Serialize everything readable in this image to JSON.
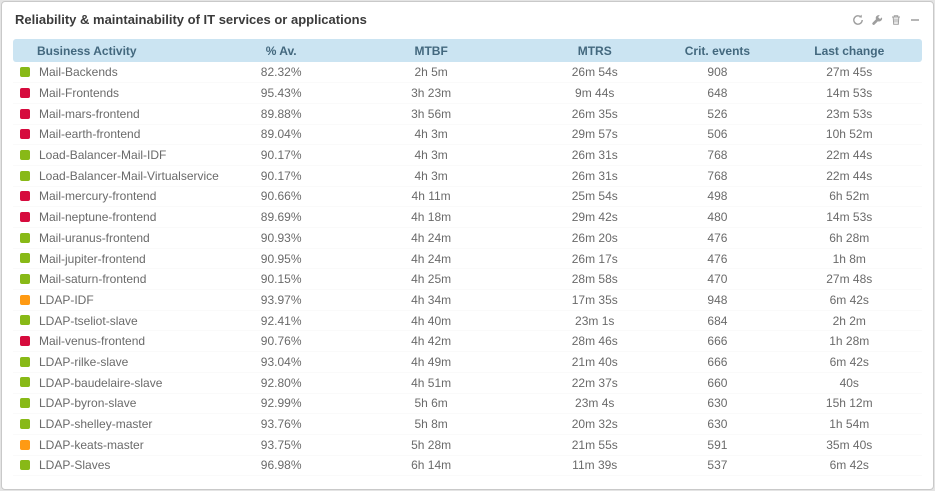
{
  "widget": {
    "title": "Reliability & maintainability of IT services or applications",
    "toolbar_icons": [
      "refresh-icon",
      "wrench-icon",
      "trash-icon",
      "collapse-icon"
    ]
  },
  "status_colors": {
    "green": "#88b917",
    "red": "#d60b3d",
    "orange": "#ff9a13"
  },
  "table": {
    "columns": [
      {
        "key": "name",
        "label": "Business Activity"
      },
      {
        "key": "av",
        "label": "% Av."
      },
      {
        "key": "mtbf",
        "label": "MTBF"
      },
      {
        "key": "mtrs",
        "label": "MTRS"
      },
      {
        "key": "crit",
        "label": "Crit. events"
      },
      {
        "key": "last",
        "label": "Last change"
      }
    ],
    "rows": [
      {
        "status": "green",
        "name": "Mail-Backends",
        "av": "82.32%",
        "mtbf": "2h 5m",
        "mtrs": "26m 54s",
        "crit": "908",
        "last": "27m 45s"
      },
      {
        "status": "red",
        "name": "Mail-Frontends",
        "av": "95.43%",
        "mtbf": "3h 23m",
        "mtrs": "9m 44s",
        "crit": "648",
        "last": "14m 53s"
      },
      {
        "status": "red",
        "name": "Mail-mars-frontend",
        "av": "89.88%",
        "mtbf": "3h 56m",
        "mtrs": "26m 35s",
        "crit": "526",
        "last": "23m 53s"
      },
      {
        "status": "red",
        "name": "Mail-earth-frontend",
        "av": "89.04%",
        "mtbf": "4h 3m",
        "mtrs": "29m 57s",
        "crit": "506",
        "last": "10h 52m"
      },
      {
        "status": "green",
        "name": "Load-Balancer-Mail-IDF",
        "av": "90.17%",
        "mtbf": "4h 3m",
        "mtrs": "26m 31s",
        "crit": "768",
        "last": "22m 44s"
      },
      {
        "status": "green",
        "name": "Load-Balancer-Mail-Virtualservice",
        "av": "90.17%",
        "mtbf": "4h 3m",
        "mtrs": "26m 31s",
        "crit": "768",
        "last": "22m 44s"
      },
      {
        "status": "red",
        "name": "Mail-mercury-frontend",
        "av": "90.66%",
        "mtbf": "4h 11m",
        "mtrs": "25m 54s",
        "crit": "498",
        "last": "6h 52m"
      },
      {
        "status": "red",
        "name": "Mail-neptune-frontend",
        "av": "89.69%",
        "mtbf": "4h 18m",
        "mtrs": "29m 42s",
        "crit": "480",
        "last": "14m 53s"
      },
      {
        "status": "green",
        "name": "Mail-uranus-frontend",
        "av": "90.93%",
        "mtbf": "4h 24m",
        "mtrs": "26m 20s",
        "crit": "476",
        "last": "6h 28m"
      },
      {
        "status": "green",
        "name": "Mail-jupiter-frontend",
        "av": "90.95%",
        "mtbf": "4h 24m",
        "mtrs": "26m 17s",
        "crit": "476",
        "last": "1h 8m"
      },
      {
        "status": "green",
        "name": "Mail-saturn-frontend",
        "av": "90.15%",
        "mtbf": "4h 25m",
        "mtrs": "28m 58s",
        "crit": "470",
        "last": "27m 48s"
      },
      {
        "status": "orange",
        "name": "LDAP-IDF",
        "av": "93.97%",
        "mtbf": "4h 34m",
        "mtrs": "17m 35s",
        "crit": "948",
        "last": "6m 42s"
      },
      {
        "status": "green",
        "name": "LDAP-tseliot-slave",
        "av": "92.41%",
        "mtbf": "4h 40m",
        "mtrs": "23m 1s",
        "crit": "684",
        "last": "2h 2m"
      },
      {
        "status": "red",
        "name": "Mail-venus-frontend",
        "av": "90.76%",
        "mtbf": "4h 42m",
        "mtrs": "28m 46s",
        "crit": "666",
        "last": "1h 28m"
      },
      {
        "status": "green",
        "name": "LDAP-rilke-slave",
        "av": "93.04%",
        "mtbf": "4h 49m",
        "mtrs": "21m 40s",
        "crit": "666",
        "last": "6m 42s"
      },
      {
        "status": "green",
        "name": "LDAP-baudelaire-slave",
        "av": "92.80%",
        "mtbf": "4h 51m",
        "mtrs": "22m 37s",
        "crit": "660",
        "last": "40s"
      },
      {
        "status": "green",
        "name": "LDAP-byron-slave",
        "av": "92.99%",
        "mtbf": "5h 6m",
        "mtrs": "23m 4s",
        "crit": "630",
        "last": "15h 12m"
      },
      {
        "status": "green",
        "name": "LDAP-shelley-master",
        "av": "93.76%",
        "mtbf": "5h 8m",
        "mtrs": "20m 32s",
        "crit": "630",
        "last": "1h 54m"
      },
      {
        "status": "orange",
        "name": "LDAP-keats-master",
        "av": "93.75%",
        "mtbf": "5h 28m",
        "mtrs": "21m 55s",
        "crit": "591",
        "last": "35m 40s"
      },
      {
        "status": "green",
        "name": "LDAP-Slaves",
        "av": "96.98%",
        "mtbf": "6h 14m",
        "mtrs": "11m 39s",
        "crit": "537",
        "last": "6m 42s"
      }
    ]
  }
}
